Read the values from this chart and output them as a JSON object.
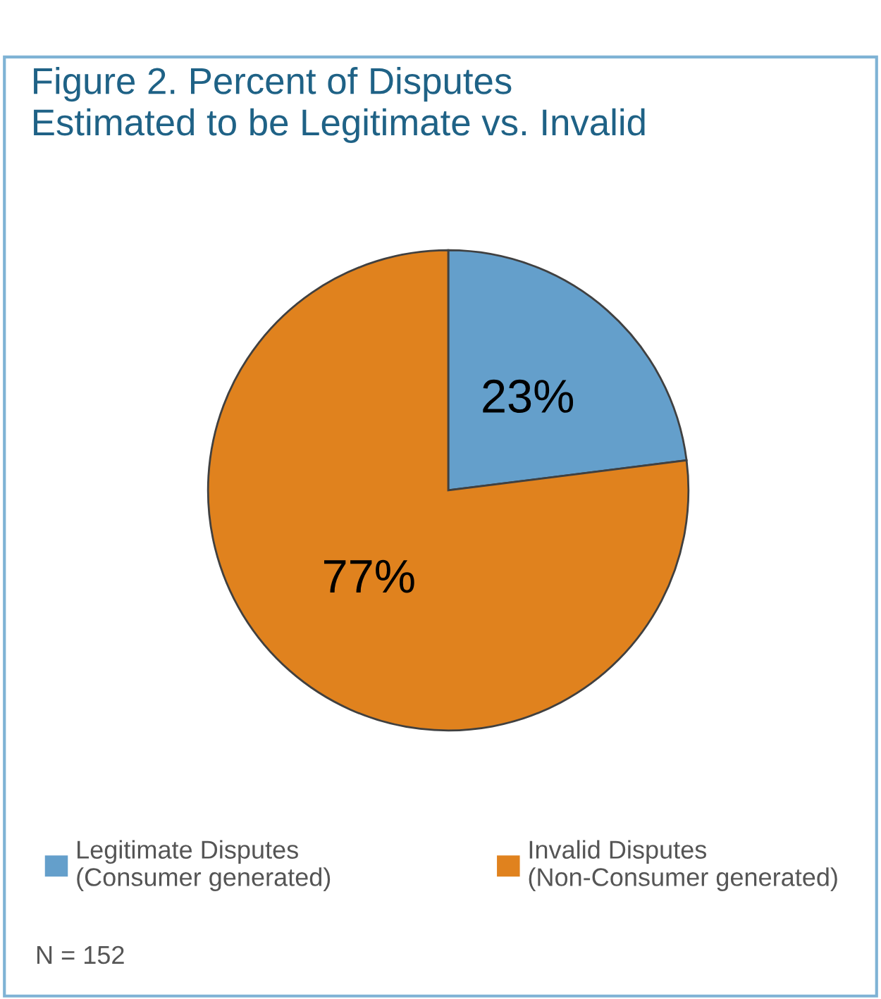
{
  "chart_data": {
    "type": "pie",
    "title": "Figure 2. Percent of Disputes\nEstimated to be Legitimate vs. Invalid",
    "categories": [
      "Legitimate Disputes\n(Consumer generated)",
      "Invalid Disputes\n(Non-Consumer generated)"
    ],
    "values": [
      23,
      77
    ],
    "colors": [
      "#649fcb",
      "#e0821e"
    ],
    "value_labels": [
      "23%",
      "77%"
    ],
    "legend": "bottom",
    "annotations": [
      "N = 152"
    ]
  }
}
